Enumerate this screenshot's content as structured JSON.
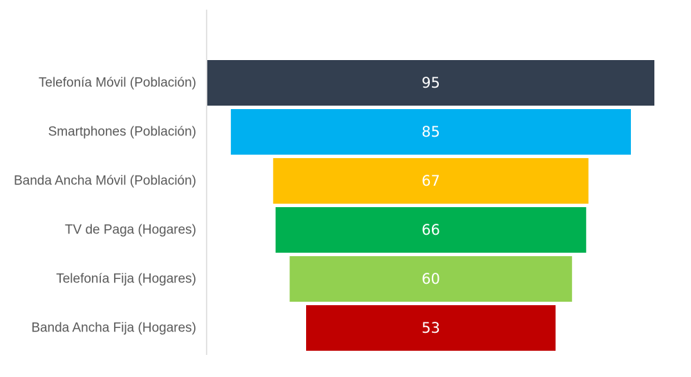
{
  "chart_data": {
    "type": "bar",
    "orientation": "horizontal-funnel",
    "categories": [
      "Telefonía Móvil (Población)",
      "Smartphones (Población)",
      "Banda Ancha Móvil (Población)",
      "TV de Paga (Hogares)",
      "Telefonía Fija (Hogares)",
      "Banda Ancha Fija (Hogares)"
    ],
    "values": [
      95,
      85,
      67,
      66,
      60,
      53
    ],
    "colors": [
      "#333F50",
      "#00B0F0",
      "#FFC000",
      "#00B050",
      "#92D050",
      "#C00000"
    ],
    "data_labels": [
      "95",
      "85",
      "67",
      "66",
      "60",
      "53"
    ],
    "grid": false,
    "legend": "none"
  }
}
